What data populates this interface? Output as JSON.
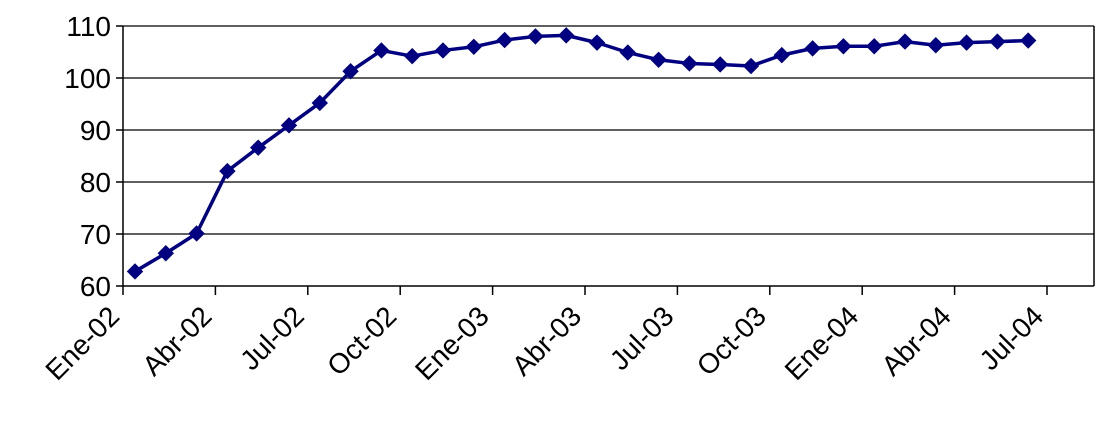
{
  "chart_data": {
    "type": "line",
    "title": "",
    "xlabel": "",
    "ylabel": "",
    "ylim": [
      60,
      110
    ],
    "yticks": [
      60,
      70,
      80,
      90,
      100,
      110
    ],
    "grid": "horizontal",
    "legend": "none",
    "x_tick_labels": [
      "Ene-02",
      "Abr-02",
      "Jul-02",
      "Oct-02",
      "Ene-03",
      "Abr-03",
      "Jul-03",
      "Oct-03",
      "Ene-04",
      "Abr-04",
      "Jul-04"
    ],
    "series": [
      {
        "color": "#000080",
        "marker": "diamond",
        "x": [
          "2002-01",
          "2002-02",
          "2002-03",
          "2002-04",
          "2002-05",
          "2002-06",
          "2002-07",
          "2002-08",
          "2002-09",
          "2002-10",
          "2002-11",
          "2002-12",
          "2003-01",
          "2003-02",
          "2003-03",
          "2003-04",
          "2003-05",
          "2003-06",
          "2003-07",
          "2003-08",
          "2003-09",
          "2003-10",
          "2003-11",
          "2003-12",
          "2004-01",
          "2004-02",
          "2004-03",
          "2004-04",
          "2004-05",
          "2004-06"
        ],
        "values": [
          62.8,
          66.3,
          70.1,
          82.1,
          86.6,
          90.9,
          95.2,
          101.3,
          105.3,
          104.2,
          105.3,
          106.0,
          107.3,
          108.0,
          108.2,
          106.8,
          104.9,
          103.5,
          102.8,
          102.6,
          102.3,
          104.4,
          105.7,
          106.1,
          106.1,
          107.0,
          106.3,
          106.8,
          107.0,
          107.2
        ]
      }
    ]
  }
}
